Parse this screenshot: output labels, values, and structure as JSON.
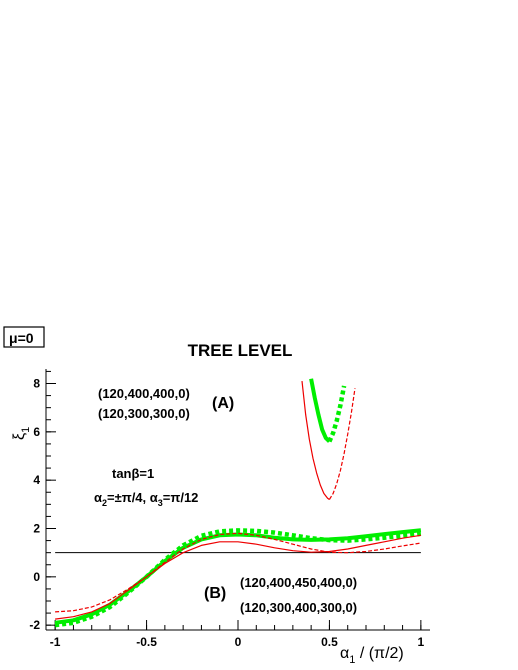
{
  "chart_data": {
    "type": "line",
    "title": "TREE LEVEL",
    "corner_label": "μ=0",
    "xlabel": {
      "base": "α",
      "sub": "1",
      "rest": " / (π/2)"
    },
    "ylabel": {
      "base": "ξ",
      "sub": "1"
    },
    "xlim": [
      -1.05,
      1.05
    ],
    "ylim": [
      -2.2,
      8.6
    ],
    "x_ticks": [
      {
        "value": -1,
        "label": "-1"
      },
      {
        "value": -0.5,
        "label": "-0.5"
      },
      {
        "value": 0,
        "label": "0"
      },
      {
        "value": 0.5,
        "label": "0.5"
      },
      {
        "value": 1,
        "label": "1"
      }
    ],
    "y_ticks": [
      {
        "value": -2,
        "label": "-2"
      },
      {
        "value": 0,
        "label": "0"
      },
      {
        "value": 2,
        "label": "2"
      },
      {
        "value": 4,
        "label": "4"
      },
      {
        "value": 6,
        "label": "6"
      },
      {
        "value": 8,
        "label": "8"
      }
    ],
    "reference_line": {
      "y": 1
    },
    "annotations": {
      "a_line1": "(120,400,400,0)",
      "a_line2": "(120,300,300,0)",
      "a_label": "(A)",
      "tanb": "tanβ=1",
      "alpha": {
        "a2": "α",
        "a2sub": "2",
        "a2rest": "=±π/4, α",
        "a3sub": "3",
        "a3rest": "=π/12"
      },
      "b_label": "(B)",
      "b_line1": "(120,400,450,400,0)",
      "b_line2": "(120,300,400,300,0)"
    },
    "series": [
      {
        "color": "#00ee00",
        "style": "solid",
        "width": 4,
        "x": [
          -1,
          -0.9,
          -0.8,
          -0.7,
          -0.6,
          -0.5,
          -0.4,
          -0.3,
          -0.2,
          -0.1,
          0,
          0.1,
          0.2,
          0.3,
          0.4,
          0.5,
          0.6,
          0.7,
          0.8,
          0.9,
          1.0
        ],
        "y": [
          -1.9,
          -1.8,
          -1.55,
          -1.15,
          -0.6,
          0.0,
          0.65,
          1.2,
          1.55,
          1.72,
          1.75,
          1.72,
          1.62,
          1.55,
          1.53,
          1.55,
          1.6,
          1.68,
          1.77,
          1.85,
          1.93
        ]
      },
      {
        "color": "#00ee00",
        "style": "dotted",
        "width": 4.5,
        "x": [
          -1,
          -0.9,
          -0.8,
          -0.7,
          -0.6,
          -0.5,
          -0.4,
          -0.3,
          -0.2,
          -0.1,
          0,
          0.1,
          0.2,
          0.3,
          0.4,
          0.5,
          0.6,
          0.7,
          0.8,
          0.9,
          1.0
        ],
        "y": [
          -2.0,
          -1.9,
          -1.65,
          -1.25,
          -0.65,
          0.0,
          0.7,
          1.3,
          1.7,
          1.88,
          1.92,
          1.9,
          1.83,
          1.72,
          1.6,
          1.52,
          1.5,
          1.55,
          1.62,
          1.7,
          1.78
        ]
      },
      {
        "color": "#ee0000",
        "style": "solid",
        "width": 1.2,
        "x": [
          -1,
          -0.9,
          -0.8,
          -0.7,
          -0.6,
          -0.5,
          -0.4,
          -0.3,
          -0.2,
          -0.1,
          0,
          0.1,
          0.2,
          0.3,
          0.4,
          0.5,
          0.6,
          0.7,
          0.8,
          0.9,
          1.0
        ],
        "y": [
          -1.75,
          -1.65,
          -1.45,
          -1.1,
          -0.55,
          0.0,
          0.55,
          1.0,
          1.3,
          1.45,
          1.45,
          1.35,
          1.2,
          1.08,
          1.02,
          1.05,
          1.15,
          1.3,
          1.45,
          1.6,
          1.72
        ]
      },
      {
        "color": "#ee0000",
        "style": "dashed",
        "width": 1.2,
        "x": [
          -1,
          -0.9,
          -0.8,
          -0.7,
          -0.6,
          -0.5,
          -0.4,
          -0.3,
          -0.2,
          -0.1,
          0,
          0.1,
          0.2,
          0.3,
          0.4,
          0.5,
          0.6,
          0.7,
          0.8,
          0.9,
          1.0
        ],
        "y": [
          -1.45,
          -1.4,
          -1.25,
          -0.95,
          -0.5,
          0.0,
          0.6,
          1.15,
          1.55,
          1.75,
          1.8,
          1.72,
          1.55,
          1.35,
          1.15,
          1.02,
          1.0,
          1.05,
          1.15,
          1.28,
          1.4
        ]
      },
      {
        "color": "#00ee00",
        "style": "solid",
        "width": 4,
        "x": [
          0.4,
          0.42,
          0.44,
          0.46,
          0.48,
          0.5
        ],
        "y": [
          8.2,
          7.4,
          6.7,
          6.1,
          5.75,
          5.6
        ]
      },
      {
        "color": "#00ee00",
        "style": "dotted",
        "width": 4.5,
        "x": [
          0.5,
          0.52,
          0.54,
          0.56,
          0.58
        ],
        "y": [
          5.6,
          5.95,
          6.45,
          7.1,
          7.9
        ]
      },
      {
        "color": "#ee0000",
        "style": "solid",
        "width": 1.2,
        "x": [
          0.35,
          0.37,
          0.39,
          0.41,
          0.43,
          0.45,
          0.47,
          0.49,
          0.5
        ],
        "y": [
          8.1,
          6.7,
          5.7,
          4.9,
          4.3,
          3.8,
          3.45,
          3.25,
          3.2
        ]
      },
      {
        "color": "#ee0000",
        "style": "dashed",
        "width": 1.2,
        "x": [
          0.5,
          0.52,
          0.54,
          0.56,
          0.58,
          0.6,
          0.62,
          0.64
        ],
        "y": [
          3.2,
          3.45,
          3.85,
          4.4,
          5.1,
          5.9,
          6.8,
          7.8
        ]
      }
    ]
  }
}
